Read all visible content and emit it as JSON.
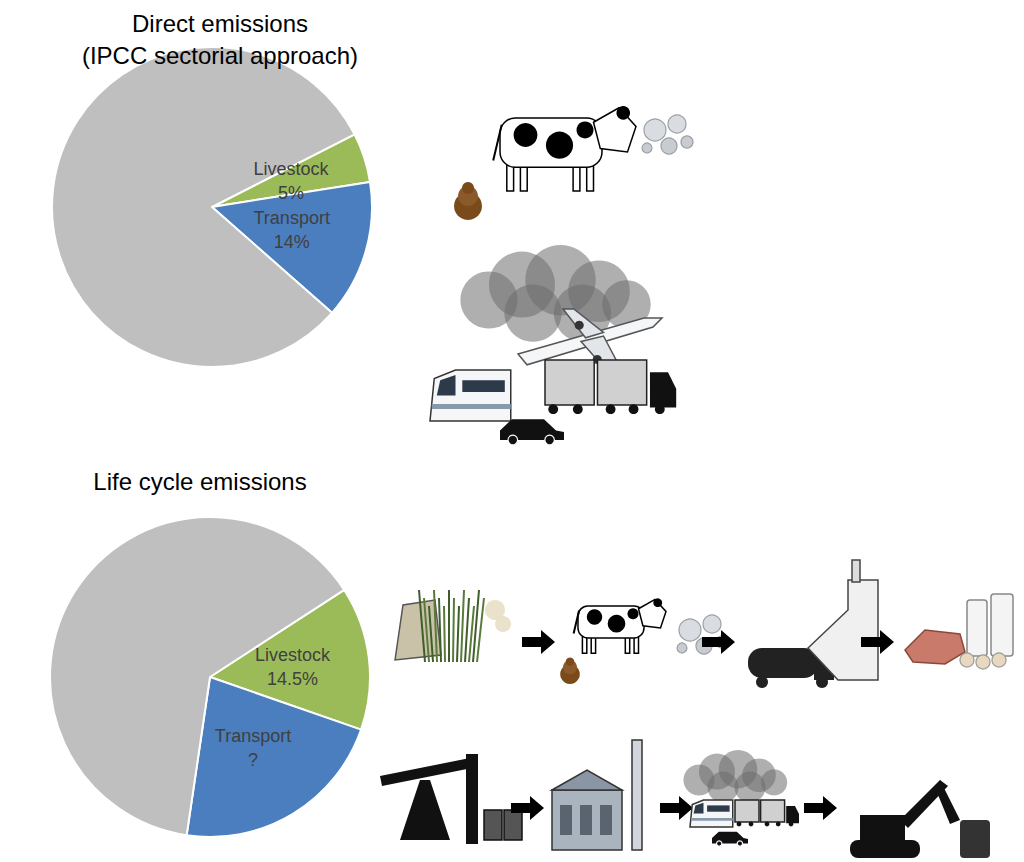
{
  "chart_data": [
    {
      "type": "pie",
      "title": "Direct emissions",
      "subtitle": "(IPCC sectorial approach)",
      "categories": [
        "Livestock",
        "Transport",
        null
      ],
      "values": [
        5,
        14,
        81
      ],
      "value_labels": [
        "5%",
        "14%",
        null
      ],
      "colors": [
        "#9bbb59",
        "#4a7ebf",
        "#bfbfbf"
      ],
      "data_labels": true
    },
    {
      "type": "pie",
      "title": "Life cycle emissions",
      "categories": [
        "Livestock",
        "Transport",
        null
      ],
      "values": [
        14.5,
        22,
        63.5
      ],
      "value_labels": [
        "14.5%",
        "?",
        null
      ],
      "colors": [
        "#9bbb59",
        "#4a7ebf",
        "#bfbfbf"
      ],
      "data_labels": true
    }
  ]
}
